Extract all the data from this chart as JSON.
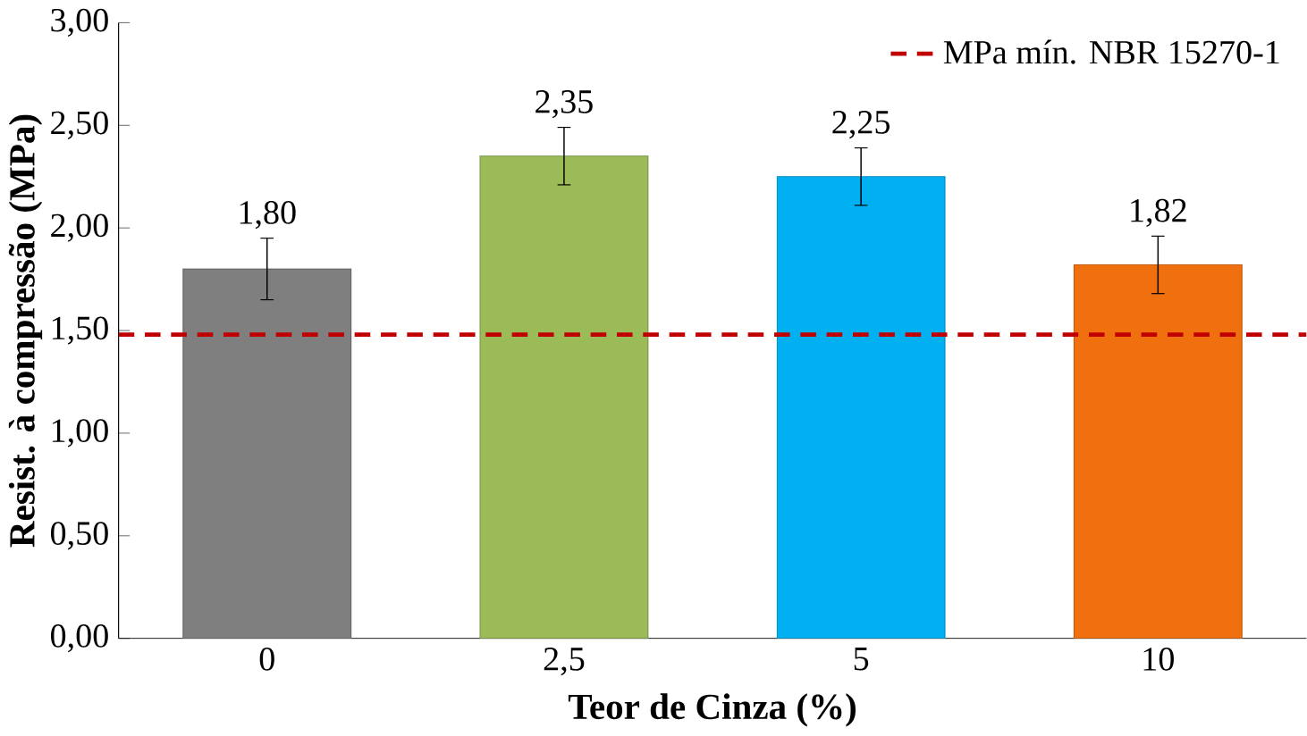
{
  "chart_data": {
    "type": "bar",
    "xlabel": "Teor de Cinza (%)",
    "ylabel": "Resist. à compressão (MPa)",
    "categories": [
      "0",
      "2,5",
      "5",
      "10"
    ],
    "values": [
      1.8,
      2.35,
      2.25,
      1.82
    ],
    "errors": [
      0.15,
      0.14,
      0.14,
      0.14
    ],
    "colors": [
      "#7f7f7f",
      "#9bbb59",
      "#00b0f0",
      "#f07010"
    ],
    "value_labels": [
      "1,80",
      "2,35",
      "2,25",
      "1,82"
    ],
    "ylim": [
      0,
      3
    ],
    "yticks": [
      {
        "value": 0,
        "label": "0,00"
      },
      {
        "value": 0.5,
        "label": "0,50"
      },
      {
        "value": 1,
        "label": "1,00"
      },
      {
        "value": 1.5,
        "label": "1,50"
      },
      {
        "value": 2,
        "label": "2,00"
      },
      {
        "value": 2.5,
        "label": "2,50"
      },
      {
        "value": 3,
        "label": "3,00"
      }
    ],
    "ref_lines": [
      {
        "axis": "y",
        "value": 1.48,
        "label": "MPa mín. NBR 15270-1",
        "color": "#c00000",
        "line_style": "dashed"
      }
    ],
    "legend": "top right",
    "grid": false
  }
}
